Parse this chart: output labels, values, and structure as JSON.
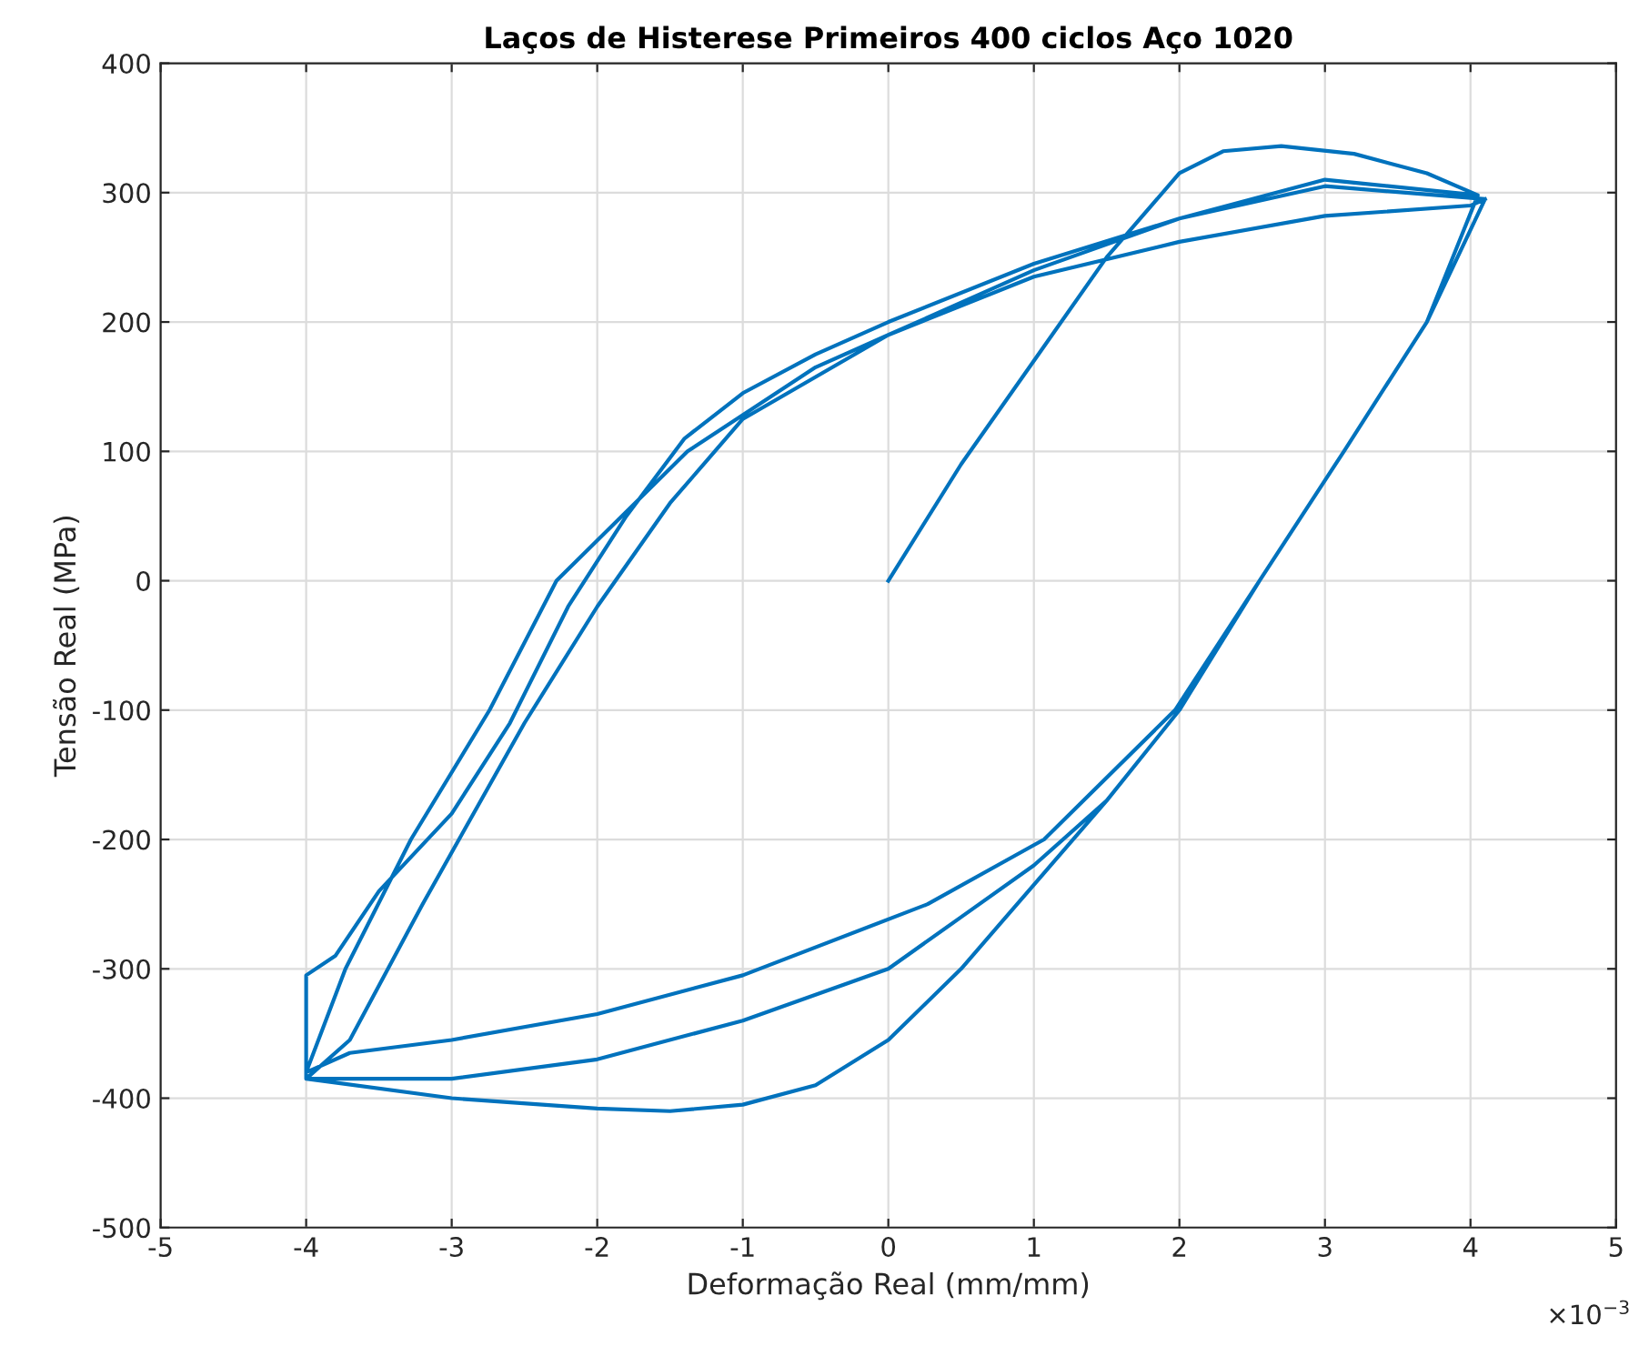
{
  "chart_data": {
    "type": "line",
    "title": "Laços de Histerese Primeiros 400 ciclos Aço 1020",
    "xlabel": "Deformação Real (mm/mm)",
    "ylabel": "Tensão Real (MPa)",
    "annotations": [
      "×10$^{−3}$"
    ],
    "xlim": [
      -5,
      5
    ],
    "xticks": [
      -5,
      -4,
      -3,
      -2,
      -1,
      0,
      1,
      2,
      3,
      4,
      5
    ],
    "ylim": [
      -500,
      400
    ],
    "yticks": [
      -500,
      -400,
      -300,
      -200,
      -100,
      0,
      100,
      200,
      300,
      400
    ],
    "grid": true,
    "legend": false,
    "marker": "none",
    "line_style": "solid",
    "series": [
      {
        "color": "#0072bd",
        "x": [
          0,
          0.5,
          1,
          1.5,
          2,
          2.3,
          2.7,
          3.2,
          3.7,
          4.05,
          3.7,
          3.13,
          2.55,
          2,
          1.5,
          1,
          0.5,
          0,
          -0.5,
          -1,
          -1.5,
          -2,
          -3,
          -4,
          -4,
          -3.8,
          -3.5,
          -3,
          -2.6,
          -2.2,
          -1.8,
          -1.4,
          -1,
          -0.5,
          0,
          1,
          2,
          3,
          4.05,
          3.7,
          3.13,
          2.55,
          2,
          1.5,
          1,
          0.5,
          0,
          -1,
          -2,
          -3,
          -4,
          -3.7,
          -3.2,
          -2.5,
          -2,
          -1.5,
          -1,
          0,
          1,
          2,
          3,
          4.1,
          3.7,
          3.13,
          2.55,
          1.97,
          1.07,
          0.27,
          -1,
          -2,
          -3,
          -3.7,
          -4,
          -3.73,
          -3.28,
          -2.74,
          -2.28,
          -1.38,
          -0.5,
          0,
          1,
          2,
          3,
          4,
          4.1
        ],
        "values": [
          0,
          90,
          170,
          250,
          315,
          332,
          336,
          330,
          315,
          298,
          200,
          100,
          0,
          -100,
          -170,
          -235,
          -300,
          -355,
          -390,
          -405,
          -410,
          -408,
          -400,
          -385,
          -305,
          -290,
          -240,
          -180,
          -110,
          -20,
          50,
          110,
          145,
          175,
          200,
          245,
          280,
          310,
          298,
          200,
          100,
          0,
          -100,
          -170,
          -220,
          -260,
          -300,
          -340,
          -370,
          -385,
          -385,
          -355,
          -250,
          -110,
          -20,
          60,
          125,
          190,
          240,
          280,
          305,
          295,
          200,
          100,
          0,
          -100,
          -200,
          -250,
          -305,
          -335,
          -355,
          -365,
          -380,
          -300,
          -200,
          -100,
          0,
          100,
          165,
          190,
          235,
          262,
          282,
          290,
          295
        ]
      }
    ]
  }
}
